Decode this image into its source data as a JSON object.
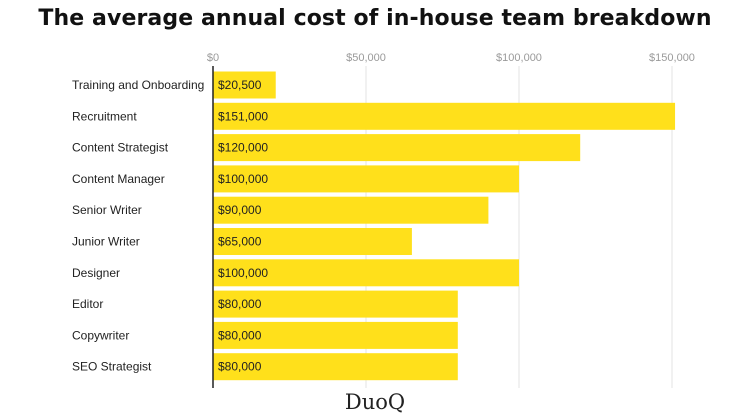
{
  "brand": {
    "logo_text": "DuoQ"
  },
  "colors": {
    "bar": "#FFE01B",
    "grid": "#e3e3e3",
    "axis": "#222222"
  },
  "chart_data": {
    "type": "bar",
    "orientation": "horizontal",
    "title": "The average annual cost of in-house team breakdown",
    "xlabel": "",
    "ylabel": "",
    "xlim": [
      0,
      150000
    ],
    "x_ticks": [
      0,
      50000,
      100000,
      150000
    ],
    "x_tick_labels": [
      "$0",
      "$50,000",
      "$100,000",
      "$150,000"
    ],
    "grid": true,
    "categories": [
      "Training and Onboarding",
      "Recruitment",
      "Content Strategist",
      "Content Manager",
      "Senior Writer",
      "Junior Writer",
      "Designer",
      "Editor",
      "Copywriter",
      "SEO Strategist"
    ],
    "values": [
      20500,
      151000,
      120000,
      100000,
      90000,
      65000,
      100000,
      80000,
      80000,
      80000
    ],
    "value_labels": [
      "$20,500",
      "$151,000",
      "$120,000",
      "$100,000",
      "$90,000",
      "$65,000",
      "$100,000",
      "$80,000",
      "$80,000",
      "$80,000"
    ]
  }
}
